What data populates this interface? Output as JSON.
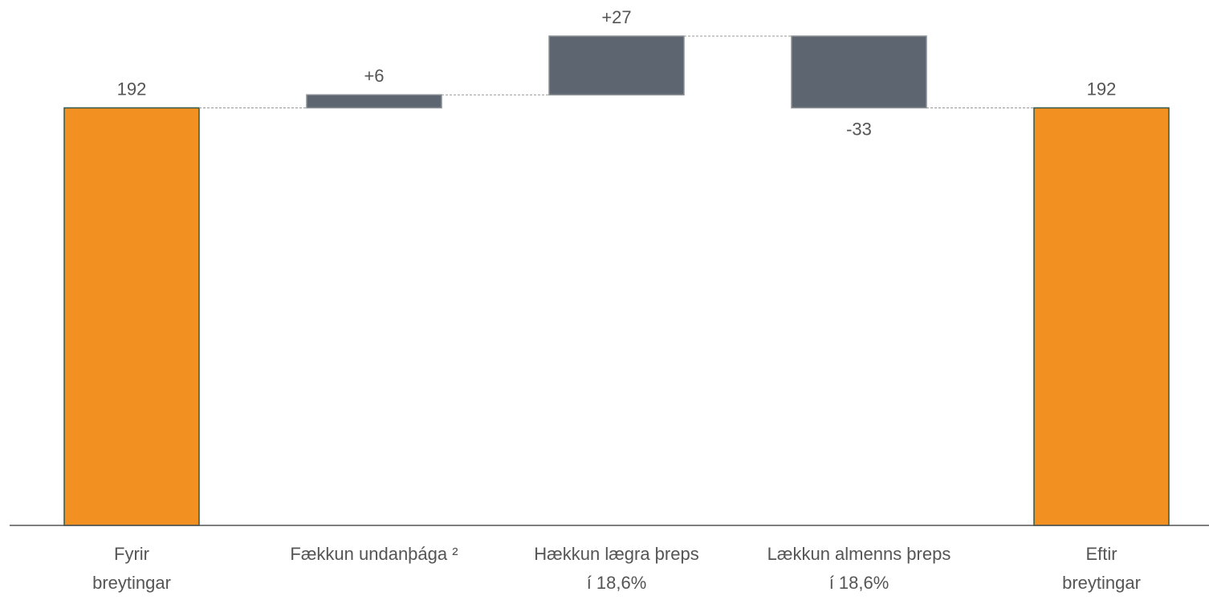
{
  "chart_data": {
    "type": "waterfall",
    "categories": [
      [
        "Fyrir",
        "breytingar"
      ],
      [
        "Fækkun undanþága ²"
      ],
      [
        "Hækkun lægra þreps",
        "í 18,6%"
      ],
      [
        "Lækkun almenns þreps",
        "í 18,6%"
      ],
      [
        "Eftir",
        "breytingar"
      ]
    ],
    "values": [
      192,
      6,
      27,
      -33,
      192
    ],
    "value_labels": [
      "192",
      "+6",
      "+27",
      "-33",
      "192"
    ],
    "is_total": [
      true,
      false,
      false,
      false,
      true
    ],
    "total_color": "#f39022",
    "change_color": "#5d6670"
  }
}
